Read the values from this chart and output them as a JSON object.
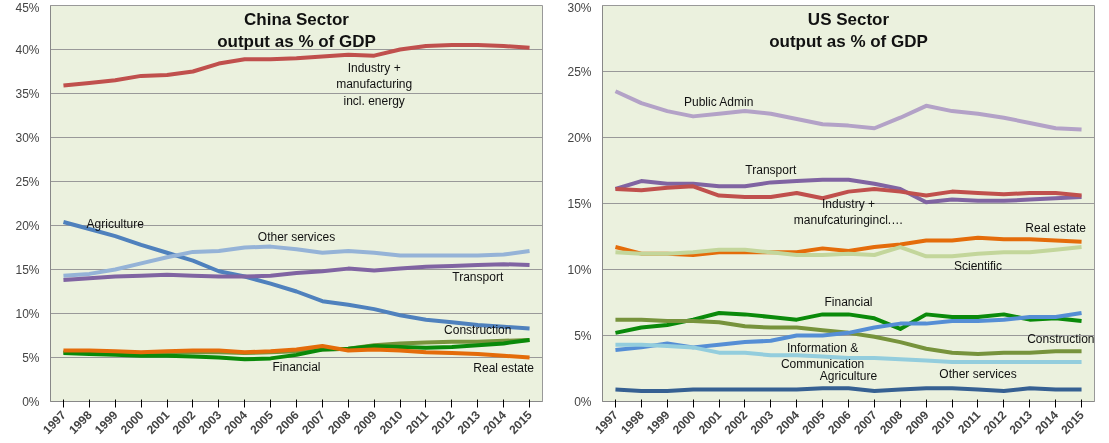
{
  "chart_data": [
    {
      "type": "line",
      "title": "China Sector\noutput as % of GDP",
      "categories": [
        "1997",
        "1998",
        "1999",
        "2000",
        "2001",
        "2002",
        "2003",
        "2004",
        "2005",
        "2006",
        "2007",
        "2008",
        "2009",
        "2010",
        "2011",
        "2012",
        "2013",
        "2014",
        "2015"
      ],
      "ylim": [
        0,
        45
      ],
      "yticks": [
        {
          "value": 0,
          "label": "0%"
        },
        {
          "value": 5,
          "label": "5%"
        },
        {
          "value": 10,
          "label": "10%"
        },
        {
          "value": 15,
          "label": "15%"
        },
        {
          "value": 20,
          "label": "20%"
        },
        {
          "value": 25,
          "label": "25%"
        },
        {
          "value": 30,
          "label": "30%"
        },
        {
          "value": 35,
          "label": "35%"
        },
        {
          "value": 40,
          "label": "40%"
        },
        {
          "value": 45,
          "label": "45%"
        }
      ],
      "grid": "y",
      "series": [
        {
          "color": "#c0504d",
          "values": [
            35.9,
            36.2,
            36.5,
            37.0,
            37.1,
            37.5,
            38.4,
            38.9,
            38.9,
            39.0,
            39.2,
            39.4,
            39.3,
            40.0,
            40.4,
            40.5,
            40.5,
            40.4,
            40.2
          ]
        },
        {
          "color": "#4f81bd",
          "values": [
            20.4,
            19.6,
            18.8,
            17.8,
            16.9,
            16.0,
            14.8,
            14.2,
            13.4,
            12.5,
            11.4,
            11.0,
            10.5,
            9.8,
            9.3,
            9.0,
            8.7,
            8.5,
            8.3
          ]
        },
        {
          "color": "#95b3d7",
          "values": [
            14.3,
            14.5,
            15.0,
            15.7,
            16.4,
            17.0,
            17.1,
            17.5,
            17.6,
            17.3,
            16.9,
            17.1,
            16.9,
            16.6,
            16.6,
            16.6,
            16.6,
            16.7,
            17.1
          ]
        },
        {
          "color": "#8064a2",
          "values": [
            13.8,
            14.0,
            14.2,
            14.3,
            14.4,
            14.3,
            14.2,
            14.2,
            14.3,
            14.6,
            14.8,
            15.1,
            14.9,
            15.1,
            15.3,
            15.4,
            15.5,
            15.6,
            15.5
          ]
        },
        {
          "color": "#77933c",
          "values": [
            5.6,
            5.6,
            5.5,
            5.5,
            5.6,
            5.6,
            5.6,
            5.5,
            5.6,
            5.7,
            5.9,
            6.0,
            6.4,
            6.6,
            6.7,
            6.8,
            6.8,
            6.9,
            7.0
          ]
        },
        {
          "color": "#0a8a0a",
          "values": [
            5.5,
            5.4,
            5.3,
            5.2,
            5.2,
            5.1,
            5.0,
            4.8,
            4.9,
            5.3,
            5.9,
            6.0,
            6.3,
            6.2,
            6.1,
            6.2,
            6.4,
            6.6,
            7.0
          ]
        },
        {
          "color": "#e46c0a",
          "values": [
            5.8,
            5.8,
            5.7,
            5.6,
            5.7,
            5.8,
            5.8,
            5.6,
            5.7,
            5.9,
            6.3,
            5.8,
            5.9,
            5.8,
            5.6,
            5.5,
            5.4,
            5.2,
            5.0
          ]
        }
      ],
      "annotations": [
        {
          "text": "Industry +\nmanufacturing\nincl. energy",
          "x": "2009",
          "y": 39.3
        },
        {
          "text": "Agriculture",
          "x": "1999",
          "y": 18.8
        },
        {
          "text": "Other services",
          "x": "2006",
          "y": 17.3
        },
        {
          "text": "Transport",
          "x": "2013",
          "y": 15.5
        },
        {
          "text": "Construction",
          "x": "2013",
          "y": 6.8
        },
        {
          "text": "Financial",
          "x": "2006",
          "y": 5.3
        },
        {
          "text": "Real estate",
          "x": "2014",
          "y": 5.2
        }
      ]
    },
    {
      "type": "line",
      "title": "US Sector\noutput as % of GDP",
      "categories": [
        "1997",
        "1998",
        "1999",
        "2000",
        "2001",
        "2002",
        "2003",
        "2004",
        "2005",
        "2006",
        "2007",
        "2008",
        "2009",
        "2010",
        "2011",
        "2012",
        "2013",
        "2014",
        "2015"
      ],
      "ylim": [
        0,
        30
      ],
      "yticks": [
        {
          "value": 0,
          "label": "0%"
        },
        {
          "value": 5,
          "label": "5%"
        },
        {
          "value": 10,
          "label": "10%"
        },
        {
          "value": 15,
          "label": "15%"
        },
        {
          "value": 20,
          "label": "20%"
        },
        {
          "value": 25,
          "label": "25%"
        },
        {
          "value": 30,
          "label": "30%"
        }
      ],
      "grid": "y",
      "series": [
        {
          "color": "#b3a2c7",
          "values": [
            23.5,
            22.6,
            22.0,
            21.6,
            21.8,
            22.0,
            21.8,
            21.4,
            21.0,
            20.9,
            20.7,
            21.5,
            22.4,
            22.0,
            21.8,
            21.5,
            21.1,
            20.7,
            20.6
          ]
        },
        {
          "color": "#8064a2",
          "values": [
            16.1,
            16.7,
            16.5,
            16.5,
            16.3,
            16.3,
            16.6,
            16.7,
            16.8,
            16.8,
            16.5,
            16.1,
            15.1,
            15.3,
            15.2,
            15.2,
            15.3,
            15.4,
            15.5
          ]
        },
        {
          "color": "#c0504d",
          "values": [
            16.1,
            16.0,
            16.2,
            16.3,
            15.6,
            15.5,
            15.5,
            15.8,
            15.4,
            15.9,
            16.1,
            15.9,
            15.6,
            15.9,
            15.8,
            15.7,
            15.8,
            15.8,
            15.6
          ]
        },
        {
          "color": "#e46c0a",
          "values": [
            11.7,
            11.2,
            11.2,
            11.1,
            11.3,
            11.3,
            11.3,
            11.3,
            11.6,
            11.4,
            11.7,
            11.9,
            12.2,
            12.2,
            12.4,
            12.3,
            12.3,
            12.2,
            12.1
          ]
        },
        {
          "color": "#c3d69b",
          "values": [
            11.3,
            11.2,
            11.2,
            11.3,
            11.5,
            11.5,
            11.3,
            11.1,
            11.1,
            11.2,
            11.1,
            11.7,
            11.0,
            11.0,
            11.2,
            11.3,
            11.3,
            11.5,
            11.7
          ]
        },
        {
          "color": "#0a8a0a",
          "values": [
            5.2,
            5.6,
            5.8,
            6.2,
            6.7,
            6.6,
            6.4,
            6.2,
            6.6,
            6.6,
            6.3,
            5.5,
            6.6,
            6.4,
            6.4,
            6.6,
            6.2,
            6.3,
            6.1
          ]
        },
        {
          "color": "#77933c",
          "values": [
            6.2,
            6.2,
            6.1,
            6.1,
            6.0,
            5.7,
            5.6,
            5.6,
            5.4,
            5.2,
            4.9,
            4.5,
            4.0,
            3.7,
            3.6,
            3.7,
            3.7,
            3.8,
            3.8
          ]
        },
        {
          "color": "#558ed5",
          "values": [
            3.9,
            4.1,
            4.4,
            4.1,
            4.3,
            4.5,
            4.6,
            5.0,
            5.0,
            5.2,
            5.6,
            5.9,
            5.9,
            6.1,
            6.1,
            6.2,
            6.4,
            6.4,
            6.7
          ]
        },
        {
          "color": "#93cddd",
          "values": [
            4.3,
            4.3,
            4.2,
            4.1,
            3.7,
            3.7,
            3.5,
            3.5,
            3.4,
            3.3,
            3.3,
            3.2,
            3.1,
            3.0,
            3.0,
            3.0,
            3.0,
            3.0,
            3.0
          ]
        },
        {
          "color": "#366092",
          "values": [
            0.9,
            0.8,
            0.8,
            0.9,
            0.9,
            0.9,
            0.9,
            0.9,
            1.0,
            1.0,
            0.8,
            0.9,
            1.0,
            1.0,
            0.9,
            0.8,
            1.0,
            0.9,
            0.9
          ]
        }
      ],
      "annotations": [
        {
          "text": "Public Admin",
          "x": "2001",
          "y": 21.8
        },
        {
          "text": "Transport",
          "x": "2003",
          "y": 16.6
        },
        {
          "text": "Industry +\nmanufcaturingincl.…",
          "x": "2006",
          "y": 15.9
        },
        {
          "text": "Real estate",
          "x": "2014",
          "y": 12.2
        },
        {
          "text": "Scientific",
          "x": "2011",
          "y": 11.2
        },
        {
          "text": "Financial",
          "x": "2006",
          "y": 6.6
        },
        {
          "text": "Information &\nCommunication",
          "x": "2005",
          "y": 5.0
        },
        {
          "text": "Construction",
          "x": "2015",
          "y": 3.8
        },
        {
          "text": "Other services",
          "x": "2011",
          "y": 3.0
        },
        {
          "text": "Agriculture",
          "x": "2006",
          "y": 1.0
        }
      ]
    }
  ]
}
